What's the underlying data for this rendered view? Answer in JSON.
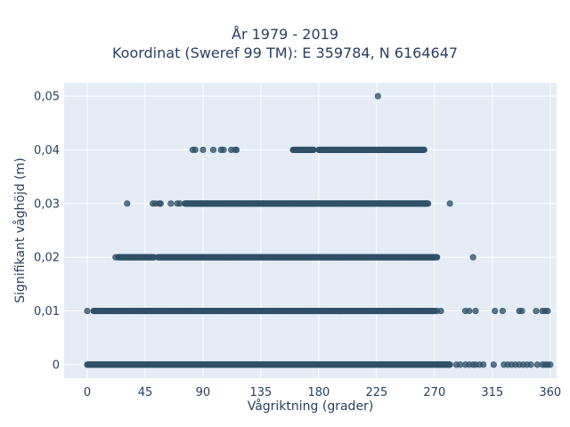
{
  "chart_data": {
    "type": "scatter",
    "title": "År 1979 - 2019",
    "subtitle": "Koordinat (Sweref 99 TM): E 359784, N 6164647",
    "xlabel": "Vågriktning (grader)",
    "ylabel": "Signifikant våghöjd (m)",
    "xlim": [
      -18,
      365
    ],
    "ylim": [
      -0.0025,
      0.0525
    ],
    "xticks": [
      0,
      45,
      90,
      135,
      180,
      225,
      270,
      315,
      360
    ],
    "xtick_labels": [
      "0",
      "45",
      "90",
      "135",
      "180",
      "225",
      "270",
      "315",
      "360"
    ],
    "yticks": [
      0,
      0.01,
      0.02,
      0.03,
      0.04,
      0.05
    ],
    "ytick_labels": [
      "0",
      "0,01",
      "0,02",
      "0,03",
      "0,04",
      "0,05"
    ],
    "grid": true,
    "colors": {
      "background": "#e5ecf6",
      "grid": "#ffffff",
      "marker": "#2f5168"
    },
    "series": [
      {
        "marker_color": "#2f5168",
        "bands": [
          {
            "y": 0,
            "x_ranges": [
              [
                0,
                282
              ]
            ],
            "sparse_x": [
              287,
              290,
              294,
              297,
              300,
              302,
              305,
              308,
              316,
              324,
              327,
              330,
              333,
              336,
              339,
              342,
              345,
              350,
              354,
              356,
              358,
              360
            ]
          },
          {
            "y": 0.01,
            "x_ranges": [
              [
                5,
                270
              ]
            ],
            "sparse_x": [
              0,
              272,
              275,
              294,
              297,
              302,
              317,
              323,
              336,
              338,
              349,
              354,
              356,
              358
            ]
          },
          {
            "y": 0.02,
            "x_ranges": [
              [
                24,
                52
              ],
              [
                55,
                272
              ]
            ],
            "sparse_x": [
              22,
              300
            ]
          },
          {
            "y": 0.03,
            "x_ranges": [
              [
                76,
                265
              ]
            ],
            "sparse_x": [
              31,
              51,
              53,
              56,
              57,
              65,
              70,
              72,
              282
            ]
          },
          {
            "y": 0.04,
            "x_ranges": [
              [
                160,
                176
              ],
              [
                180,
                262
              ]
            ],
            "sparse_x": [
              82,
              84,
              90,
              98,
              104,
              106,
              112,
              115,
              116,
              165
            ]
          },
          {
            "y": 0.05,
            "x_ranges": [],
            "sparse_x": [
              226
            ]
          }
        ]
      }
    ]
  }
}
